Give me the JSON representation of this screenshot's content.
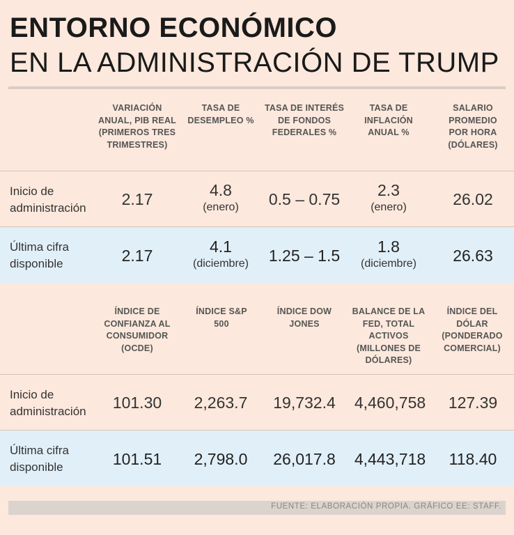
{
  "title": {
    "line1": "ENTORNO ECONÓMICO",
    "line2": "EN LA ADMINISTRACIÓN DE TRUMP"
  },
  "table1": {
    "headers": [
      "VARIACIÓN ANUAL, PIB REAL (PRIMEROS TRES TRIMESTRES)",
      "TASA DE DESEMPLEO %",
      "TASA DE INTERÉS DE FONDOS FEDERALES %",
      "TASA DE INFLACIÓN ANUAL %",
      "SALARIO PROMEDIO POR HORA (DÓLARES)"
    ],
    "rows": [
      {
        "label": [
          "Inicio de",
          "administración"
        ],
        "cells": [
          {
            "value": "2.17",
            "note": ""
          },
          {
            "value": "4.8",
            "note": "(enero)"
          },
          {
            "value": "0.5 – 0.75",
            "note": ""
          },
          {
            "value": "2.3",
            "note": "(enero)"
          },
          {
            "value": "26.02",
            "note": ""
          }
        ]
      },
      {
        "label": [
          "Última cifra",
          "disponible"
        ],
        "cells": [
          {
            "value": "2.17",
            "note": ""
          },
          {
            "value": "4.1",
            "note": "(diciembre)"
          },
          {
            "value": "1.25 – 1.5",
            "note": ""
          },
          {
            "value": "1.8",
            "note": "(diciembre)"
          },
          {
            "value": "26.63",
            "note": ""
          }
        ]
      }
    ]
  },
  "table2": {
    "headers": [
      "ÍNDICE DE CONFIANZA AL CONSUMIDOR (OCDE)",
      "ÍNDICE S&P 500",
      "ÍNDICE DOW JONES",
      "BALANCE DE LA FED, TOTAL ACTIVOS (MILLONES DE DÓLARES)",
      "ÍNDICE DEL DÓLAR (PONDERADO COMERCIAL)"
    ],
    "rows": [
      {
        "label": [
          "Inicio de",
          "administración"
        ],
        "cells": [
          {
            "value": "101.30",
            "note": ""
          },
          {
            "value": "2,263.7",
            "note": ""
          },
          {
            "value": "19,732.4",
            "note": ""
          },
          {
            "value": "4,460,758",
            "note": ""
          },
          {
            "value": "127.39",
            "note": ""
          }
        ]
      },
      {
        "label": [
          "Última cifra",
          "disponible"
        ],
        "cells": [
          {
            "value": "101.51",
            "note": ""
          },
          {
            "value": "2,798.0",
            "note": ""
          },
          {
            "value": "26,017.8",
            "note": ""
          },
          {
            "value": "4,443,718",
            "note": ""
          },
          {
            "value": "118.40",
            "note": ""
          }
        ]
      }
    ]
  },
  "footer": "FUENTE: ELABORACIÓN PROPIA.  GRÁFICO EE: STAFF.",
  "colors": {
    "background": "#fce8dc",
    "highlight_row": "#e1eff8",
    "header_text": "#555555"
  }
}
